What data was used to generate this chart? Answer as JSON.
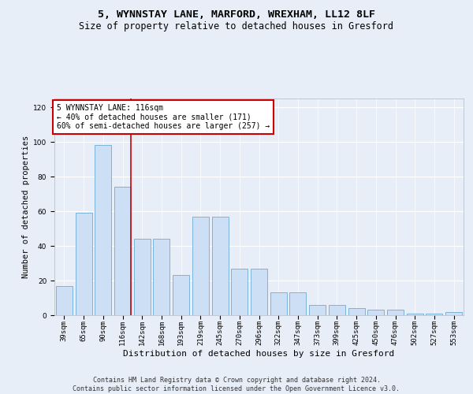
{
  "title1": "5, WYNNSTAY LANE, MARFORD, WREXHAM, LL12 8LF",
  "title2": "Size of property relative to detached houses in Gresford",
  "xlabel": "Distribution of detached houses by size in Gresford",
  "ylabel": "Number of detached properties",
  "categories": [
    "39sqm",
    "65sqm",
    "90sqm",
    "116sqm",
    "142sqm",
    "168sqm",
    "193sqm",
    "219sqm",
    "245sqm",
    "270sqm",
    "296sqm",
    "322sqm",
    "347sqm",
    "373sqm",
    "399sqm",
    "425sqm",
    "450sqm",
    "476sqm",
    "502sqm",
    "527sqm",
    "553sqm"
  ],
  "values": [
    17,
    59,
    98,
    74,
    44,
    44,
    23,
    57,
    57,
    27,
    27,
    13,
    13,
    6,
    6,
    4,
    3,
    3,
    1,
    1,
    2
  ],
  "bar_color": "#ccdff5",
  "bar_edge_color": "#6aabd6",
  "highlight_index": 3,
  "highlight_line_color": "#cc0000",
  "annotation_text": "5 WYNNSTAY LANE: 116sqm\n← 40% of detached houses are smaller (171)\n60% of semi-detached houses are larger (257) →",
  "annotation_box_color": "#ffffff",
  "annotation_box_edge": "#cc0000",
  "ylim": [
    0,
    125
  ],
  "yticks": [
    0,
    20,
    40,
    60,
    80,
    100,
    120
  ],
  "background_color": "#e8eef8",
  "plot_bg_color": "#e8eef8",
  "footer": "Contains HM Land Registry data © Crown copyright and database right 2024.\nContains public sector information licensed under the Open Government Licence v3.0.",
  "title1_fontsize": 9.5,
  "title2_fontsize": 8.5,
  "xlabel_fontsize": 8,
  "ylabel_fontsize": 7.5,
  "tick_fontsize": 6.5,
  "footer_fontsize": 6,
  "ann_fontsize": 7
}
